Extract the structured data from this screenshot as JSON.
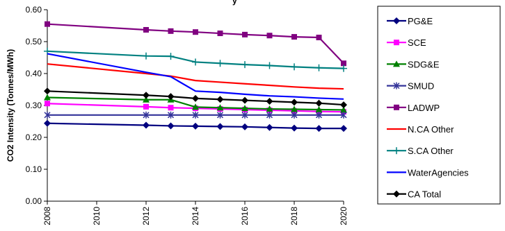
{
  "chart_data": {
    "type": "line",
    "title_fragment": "y",
    "ylabel": "CO2 Intensity (Tonnes/MWh)",
    "xlabel": "",
    "xlim": [
      2008,
      2020
    ],
    "ylim": [
      0,
      0.6
    ],
    "x_ticks": [
      "2008",
      "2010",
      "2012",
      "2014",
      "2016",
      "2018",
      "2020"
    ],
    "y_ticks": [
      "0.00",
      "0.10",
      "0.20",
      "0.30",
      "0.40",
      "0.50",
      "0.60"
    ],
    "grid": false,
    "legend_position": "right",
    "series": [
      {
        "name": "PG&E",
        "color": "#00007f",
        "marker": "diamond",
        "x": [
          2008,
          2012,
          2013,
          2014,
          2015,
          2016,
          2017,
          2018,
          2019,
          2020
        ],
        "y": [
          0.244,
          0.238,
          0.236,
          0.235,
          0.234,
          0.233,
          0.231,
          0.229,
          0.228,
          0.228
        ]
      },
      {
        "name": "SCE",
        "color": "#ff00ff",
        "marker": "square",
        "x": [
          2008,
          2012,
          2013,
          2014,
          2015,
          2016,
          2017,
          2018,
          2019,
          2020
        ],
        "y": [
          0.306,
          0.296,
          0.293,
          0.291,
          0.289,
          0.287,
          0.285,
          0.283,
          0.281,
          0.28
        ]
      },
      {
        "name": "SDG&E",
        "color": "#008000",
        "marker": "triangle",
        "x": [
          2008,
          2012,
          2013,
          2014,
          2015,
          2016,
          2017,
          2018,
          2019,
          2020
        ],
        "y": [
          0.325,
          0.318,
          0.318,
          0.295,
          0.293,
          0.291,
          0.289,
          0.288,
          0.287,
          0.286
        ]
      },
      {
        "name": "SMUD",
        "color": "#333399",
        "marker": "star",
        "x": [
          2008,
          2012,
          2013,
          2014,
          2015,
          2016,
          2017,
          2018,
          2019,
          2020
        ],
        "y": [
          0.27,
          0.27,
          0.27,
          0.27,
          0.27,
          0.27,
          0.27,
          0.27,
          0.27,
          0.27
        ]
      },
      {
        "name": "LADWP",
        "color": "#800080",
        "marker": "square",
        "x": [
          2008,
          2012,
          2013,
          2014,
          2015,
          2016,
          2017,
          2018,
          2019,
          2020
        ],
        "y": [
          0.555,
          0.537,
          0.533,
          0.53,
          0.526,
          0.522,
          0.519,
          0.515,
          0.513,
          0.432
        ]
      },
      {
        "name": "N.CA Other",
        "color": "#ff0000",
        "marker": "none",
        "x": [
          2008,
          2012,
          2013,
          2014,
          2015,
          2016,
          2017,
          2018,
          2019,
          2020
        ],
        "y": [
          0.43,
          0.4,
          0.392,
          0.378,
          0.373,
          0.368,
          0.363,
          0.358,
          0.354,
          0.352
        ]
      },
      {
        "name": "S.CA Other",
        "color": "#008080",
        "marker": "plus",
        "x": [
          2008,
          2012,
          2013,
          2014,
          2015,
          2016,
          2017,
          2018,
          2019,
          2020
        ],
        "y": [
          0.47,
          0.455,
          0.454,
          0.436,
          0.432,
          0.428,
          0.425,
          0.421,
          0.418,
          0.416
        ]
      },
      {
        "name": "WaterAgencies",
        "color": "#0000ff",
        "marker": "none",
        "x": [
          2008,
          2012,
          2013,
          2014,
          2015,
          2016,
          2017,
          2018,
          2019,
          2020
        ],
        "y": [
          0.462,
          0.404,
          0.39,
          0.345,
          0.341,
          0.335,
          0.33,
          0.327,
          0.323,
          0.32
        ]
      },
      {
        "name": "CA Total",
        "color": "#000000",
        "marker": "diamond",
        "x": [
          2008,
          2012,
          2013,
          2014,
          2015,
          2016,
          2017,
          2018,
          2019,
          2020
        ],
        "y": [
          0.345,
          0.332,
          0.328,
          0.322,
          0.319,
          0.316,
          0.313,
          0.31,
          0.307,
          0.302
        ]
      }
    ]
  }
}
